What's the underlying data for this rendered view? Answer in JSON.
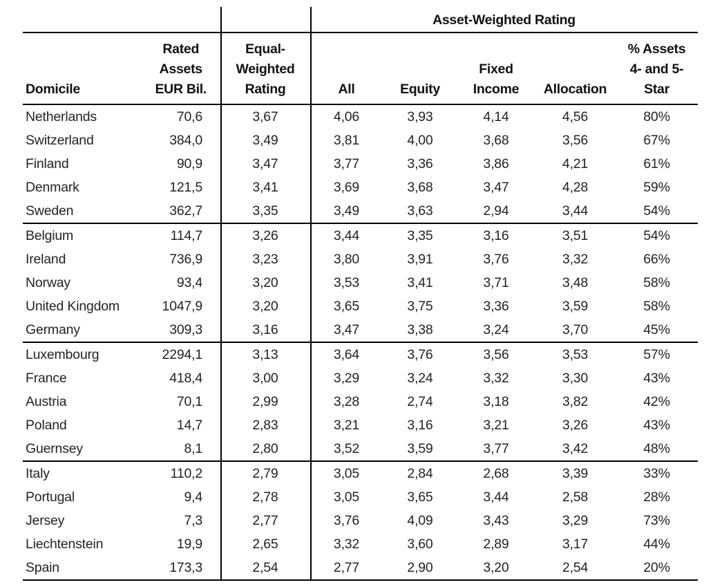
{
  "chart_data": {
    "type": "table",
    "spanner": "Asset-Weighted Rating",
    "spanner_columns": [
      "All",
      "Equity",
      "Fixed Income",
      "Allocation",
      "% Assets 4- and 5-Star"
    ],
    "columns": [
      "Domicile",
      "Rated Assets EUR Bil.",
      "Equal-Weighted Rating",
      "All",
      "Equity",
      "Fixed Income",
      "Allocation",
      "% Assets 4- and 5-Star"
    ],
    "header_lines": [
      [
        "Domicile"
      ],
      [
        "Rated",
        "Assets",
        "EUR Bil."
      ],
      [
        "Equal-",
        "Weighted",
        "Rating"
      ],
      [
        "All"
      ],
      [
        "Equity"
      ],
      [
        "Fixed",
        "Income"
      ],
      [
        "Allocation"
      ],
      [
        "% Assets",
        "4- and 5-",
        "Star"
      ]
    ],
    "row_groups": [
      [
        [
          "Netherlands",
          "70,6",
          "3,67",
          "4,06",
          "3,93",
          "4,14",
          "4,56",
          "80%"
        ],
        [
          "Switzerland",
          "384,0",
          "3,49",
          "3,81",
          "4,00",
          "3,68",
          "3,56",
          "67%"
        ],
        [
          "Finland",
          "90,9",
          "3,47",
          "3,77",
          "3,36",
          "3,86",
          "4,21",
          "61%"
        ],
        [
          "Denmark",
          "121,5",
          "3,41",
          "3,69",
          "3,68",
          "3,47",
          "4,28",
          "59%"
        ],
        [
          "Sweden",
          "362,7",
          "3,35",
          "3,49",
          "3,63",
          "2,94",
          "3,44",
          "54%"
        ]
      ],
      [
        [
          "Belgium",
          "114,7",
          "3,26",
          "3,44",
          "3,35",
          "3,16",
          "3,51",
          "54%"
        ],
        [
          "Ireland",
          "736,9",
          "3,23",
          "3,80",
          "3,91",
          "3,76",
          "3,32",
          "66%"
        ],
        [
          "Norway",
          "93,4",
          "3,20",
          "3,53",
          "3,41",
          "3,71",
          "3,48",
          "58%"
        ],
        [
          "United Kingdom",
          "1047,9",
          "3,20",
          "3,65",
          "3,75",
          "3,36",
          "3,59",
          "58%"
        ],
        [
          "Germany",
          "309,3",
          "3,16",
          "3,47",
          "3,38",
          "3,24",
          "3,70",
          "45%"
        ]
      ],
      [
        [
          "Luxembourg",
          "2294,1",
          "3,13",
          "3,64",
          "3,76",
          "3,56",
          "3,53",
          "57%"
        ],
        [
          "France",
          "418,4",
          "3,00",
          "3,29",
          "3,24",
          "3,32",
          "3,30",
          "43%"
        ],
        [
          "Austria",
          "70,1",
          "2,99",
          "3,28",
          "2,74",
          "3,18",
          "3,82",
          "42%"
        ],
        [
          "Poland",
          "14,7",
          "2,83",
          "3,21",
          "3,16",
          "3,21",
          "3,26",
          "43%"
        ],
        [
          "Guernsey",
          "8,1",
          "2,80",
          "3,52",
          "3,59",
          "3,77",
          "3,42",
          "48%"
        ]
      ],
      [
        [
          "Italy",
          "110,2",
          "2,79",
          "3,05",
          "2,84",
          "2,68",
          "3,39",
          "33%"
        ],
        [
          "Portugal",
          "9,4",
          "2,78",
          "3,05",
          "3,65",
          "3,44",
          "2,58",
          "28%"
        ],
        [
          "Jersey",
          "7,3",
          "2,77",
          "3,76",
          "4,09",
          "3,43",
          "3,29",
          "73%"
        ],
        [
          "Liechtenstein",
          "19,9",
          "2,65",
          "3,32",
          "3,60",
          "2,89",
          "3,17",
          "44%"
        ],
        [
          "Spain",
          "173,3",
          "2,54",
          "2,77",
          "2,90",
          "3,20",
          "2,54",
          "20%"
        ]
      ]
    ],
    "colors": {
      "text": "#1a1a1a",
      "rule": "#000000",
      "background": "#ffffff"
    }
  }
}
